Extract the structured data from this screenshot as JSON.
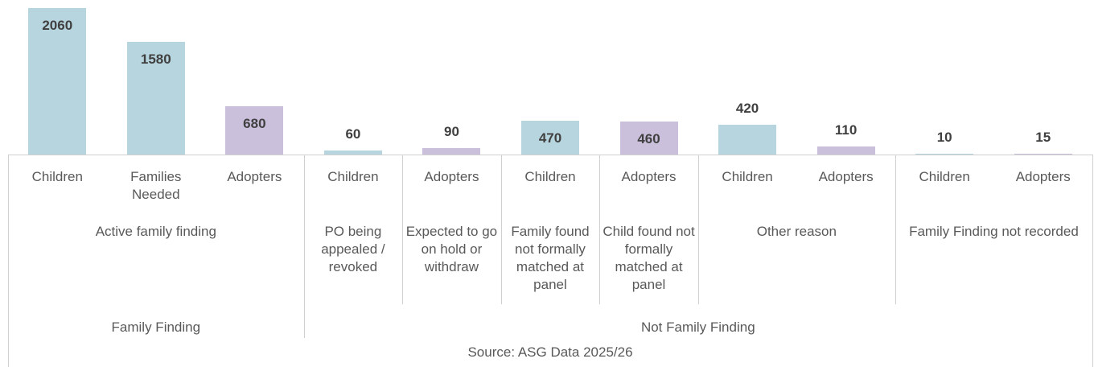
{
  "chart_data": {
    "type": "bar",
    "groups": [
      {
        "name": "Family Finding",
        "subgroups": [
          {
            "name": "Active family finding",
            "categories": [
              "Children",
              "Families Needed",
              "Adopters"
            ]
          }
        ]
      },
      {
        "name": "Not Family Finding",
        "subgroups": [
          {
            "name": "PO being appealed / revoked",
            "categories": [
              "Children"
            ]
          },
          {
            "name": "Expected to go on hold or withdraw",
            "categories": [
              "Adopters"
            ]
          },
          {
            "name": "Family found not formally matched at panel",
            "categories": [
              "Children"
            ]
          },
          {
            "name": "Child found not formally matched at panel",
            "categories": [
              "Adopters"
            ]
          },
          {
            "name": "Other reason",
            "categories": [
              "Children",
              "Adopters"
            ]
          },
          {
            "name": "Family Finding not recorded",
            "categories": [
              "Children",
              "Adopters"
            ]
          }
        ]
      }
    ],
    "values": [
      2060,
      1580,
      680,
      60,
      90,
      470,
      460,
      420,
      110,
      10,
      15
    ],
    "colors": [
      "#b7d5df",
      "#b7d5df",
      "#cbc0dc",
      "#b7d5df",
      "#cbc0dc",
      "#b7d5df",
      "#cbc0dc",
      "#b7d5df",
      "#cbc0dc",
      "#b7d5df",
      "#cbc0dc"
    ],
    "source": "Source: ASG Data 2025/26"
  }
}
